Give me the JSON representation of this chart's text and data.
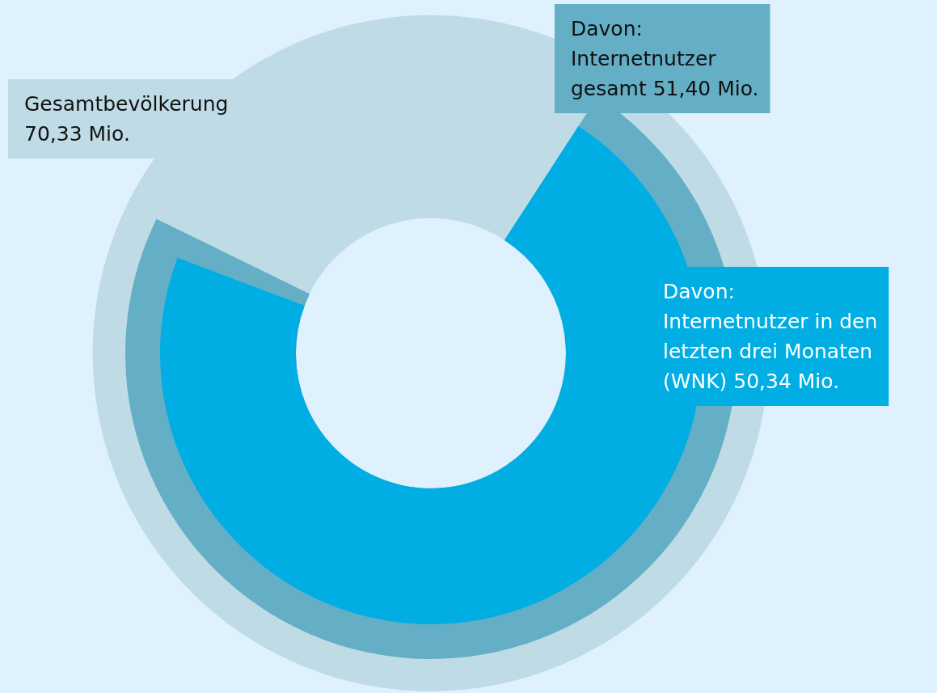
{
  "chart_data": {
    "type": "other",
    "categories": [
      "Gesamtbevölkerung",
      "Davon:\nInternetnutzer\ngesamt",
      "Davon:\nInternetnutzer in den\nletzten drei Monaten\n(WNK)"
    ],
    "values": [
      70.33,
      51.4,
      50.34
    ],
    "value_labels": [
      "70,33 Mio.",
      "51,40 Mio.",
      "50,34 Mio."
    ],
    "colors": [
      "#bfdbe6",
      "#64afc6",
      "#00aee4"
    ]
  }
}
